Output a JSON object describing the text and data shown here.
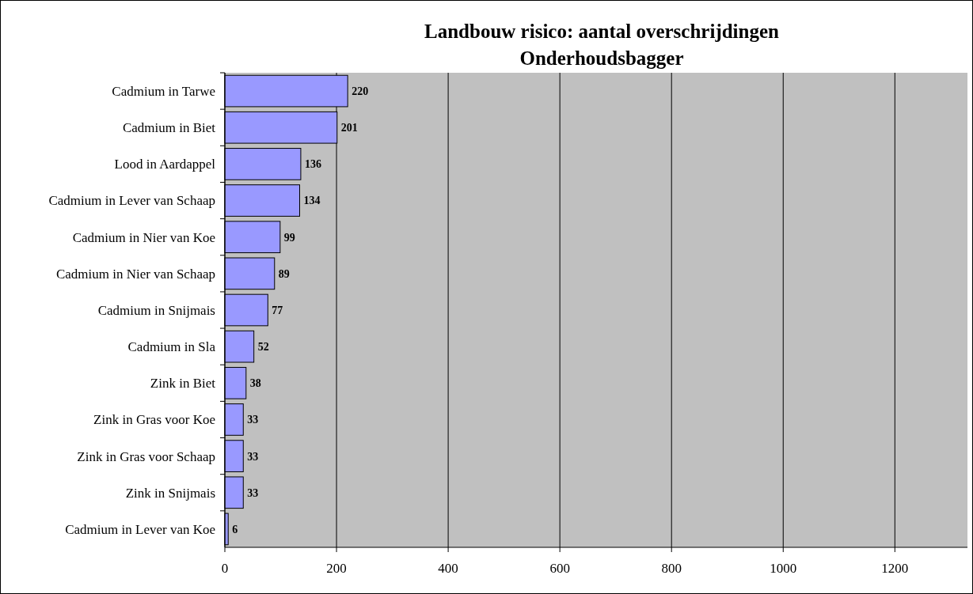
{
  "chart_data": {
    "type": "bar",
    "orientation": "horizontal",
    "title": "Landbouw risico: aantal overschrijdingen",
    "subtitle": "Onderhoudsbagger",
    "categories": [
      "Cadmium in Tarwe",
      "Cadmium in Biet",
      "Lood in Aardappel",
      "Cadmium in Lever van Schaap",
      "Cadmium in Nier van Koe",
      "Cadmium in Nier van Schaap",
      "Cadmium in Snijmais",
      "Cadmium in Sla",
      "Zink in Biet",
      "Zink in Gras voor Koe",
      "Zink in Gras voor Schaap",
      "Zink in Snijmais",
      "Cadmium in Lever van Koe"
    ],
    "values": [
      220,
      201,
      136,
      134,
      99,
      89,
      77,
      52,
      38,
      33,
      33,
      33,
      6
    ],
    "color": "#9999ff",
    "xlim": [
      0,
      1330
    ],
    "xticks": [
      0,
      200,
      400,
      600,
      800,
      1000,
      1200
    ],
    "grid": "x",
    "data_labels": true
  }
}
